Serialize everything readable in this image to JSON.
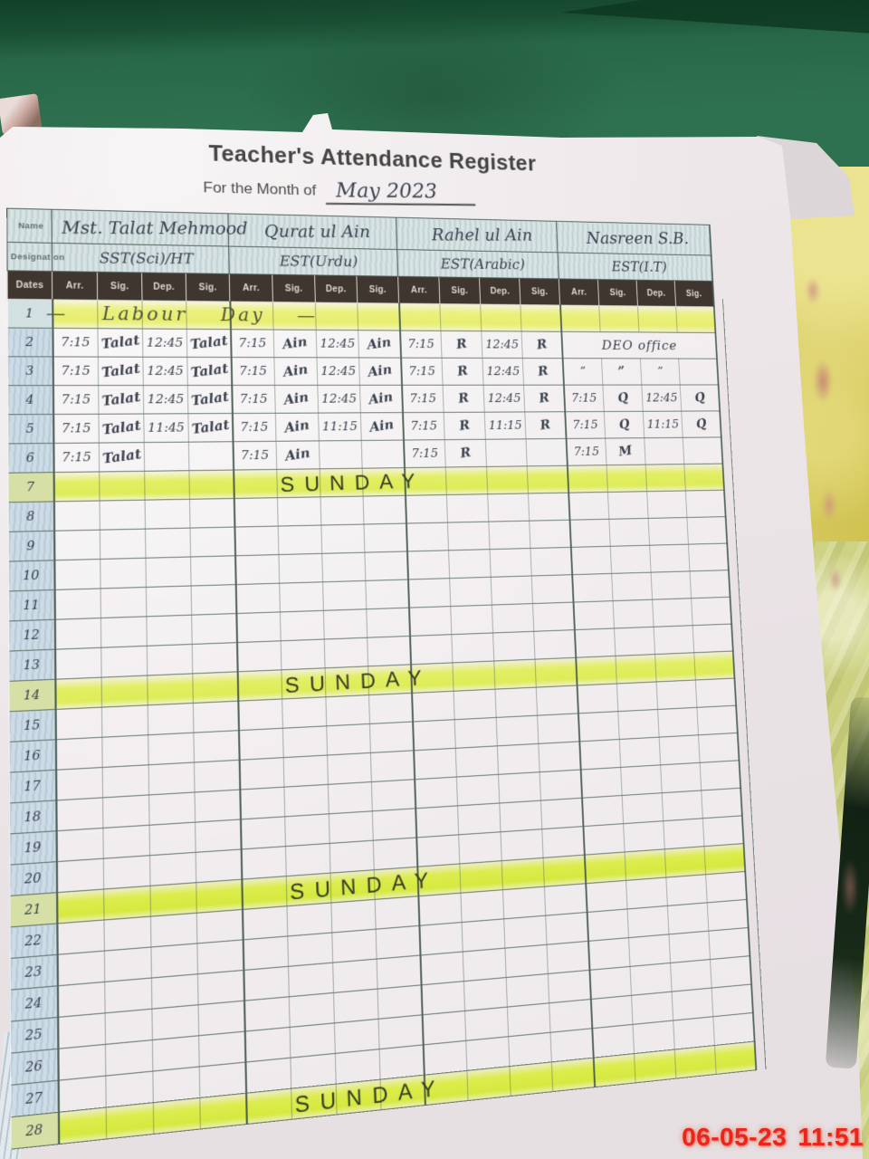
{
  "page_title": "Teacher's Attendance Register",
  "subtitle_label": "For the Month of",
  "month_value": "May 2023",
  "fields": {
    "name_label": "Name",
    "designation_label": "Designation"
  },
  "teachers": [
    {
      "name": "Mst. Talat Mehmood",
      "designation": "SST(Sci)/HT"
    },
    {
      "name": "Qurat ul Ain",
      "designation": "EST(Urdu)"
    },
    {
      "name": "Rahel ul Ain",
      "designation": "EST(Arabic)"
    },
    {
      "name": "Nasreen S.B.",
      "designation": "EST(I.T)"
    }
  ],
  "columns": {
    "dates_label": "Dates",
    "sub": [
      "Arr.",
      "Sig.",
      "Dep.",
      "Sig."
    ]
  },
  "rows": [
    {
      "date": "1",
      "type": "holiday",
      "label": "— Labour Day —"
    },
    {
      "date": "2",
      "type": "entries",
      "groups": [
        [
          "7:15",
          "Talat",
          "12:45",
          "Talat"
        ],
        [
          "7:15",
          "Ain",
          "12:45",
          "Ain"
        ],
        [
          "7:15",
          "R",
          "12:45",
          "R"
        ],
        {
          "span": "DEO office"
        }
      ]
    },
    {
      "date": "3",
      "type": "entries",
      "groups": [
        [
          "7:15",
          "Talat",
          "12:45",
          "Talat"
        ],
        [
          "7:15",
          "Ain",
          "12:45",
          "Ain"
        ],
        [
          "7:15",
          "R",
          "12:45",
          "R"
        ],
        [
          "”",
          "”",
          "”",
          ""
        ]
      ]
    },
    {
      "date": "4",
      "type": "entries",
      "groups": [
        [
          "7:15",
          "Talat",
          "12:45",
          "Talat"
        ],
        [
          "7:15",
          "Ain",
          "12:45",
          "Ain"
        ],
        [
          "7:15",
          "R",
          "12:45",
          "R"
        ],
        [
          "7:15",
          "Q",
          "12:45",
          "Q"
        ]
      ]
    },
    {
      "date": "5",
      "type": "entries",
      "groups": [
        [
          "7:15",
          "Talat",
          "11:45",
          "Talat"
        ],
        [
          "7:15",
          "Ain",
          "11:15",
          "Ain"
        ],
        [
          "7:15",
          "R",
          "11:15",
          "R"
        ],
        [
          "7:15",
          "Q",
          "11:15",
          "Q"
        ]
      ]
    },
    {
      "date": "6",
      "type": "entries",
      "groups": [
        [
          "7:15",
          "Talat",
          "",
          ""
        ],
        [
          "7:15",
          "Ain",
          "",
          ""
        ],
        [
          "7:15",
          "R",
          "",
          ""
        ],
        [
          "7:15",
          "M",
          "",
          ""
        ]
      ]
    },
    {
      "date": "7",
      "type": "sunday",
      "label": "SUNDAY"
    },
    {
      "date": "8",
      "type": "empty"
    },
    {
      "date": "9",
      "type": "empty"
    },
    {
      "date": "10",
      "type": "empty"
    },
    {
      "date": "11",
      "type": "empty"
    },
    {
      "date": "12",
      "type": "empty"
    },
    {
      "date": "13",
      "type": "empty"
    },
    {
      "date": "14",
      "type": "sunday",
      "label": "SUNDAY"
    },
    {
      "date": "15",
      "type": "empty"
    },
    {
      "date": "16",
      "type": "empty"
    },
    {
      "date": "17",
      "type": "empty"
    },
    {
      "date": "18",
      "type": "empty"
    },
    {
      "date": "19",
      "type": "empty"
    },
    {
      "date": "20",
      "type": "empty"
    },
    {
      "date": "21",
      "type": "sunday",
      "label": "SUNDAY"
    },
    {
      "date": "22",
      "type": "empty"
    },
    {
      "date": "23",
      "type": "empty"
    },
    {
      "date": "24",
      "type": "empty"
    },
    {
      "date": "25",
      "type": "empty"
    },
    {
      "date": "26",
      "type": "empty"
    },
    {
      "date": "27",
      "type": "empty"
    },
    {
      "date": "28",
      "type": "sunday",
      "label": "SUNDAY"
    }
  ],
  "timestamp": "06-05-23  11:51",
  "colors": {
    "felt_green": "#2c6f4e",
    "highlight_yellow": "#e3ee64",
    "header_dark": "#3f372f",
    "date_column_blue": "#ccdbe5",
    "timestamp_red": "#ef2418"
  }
}
